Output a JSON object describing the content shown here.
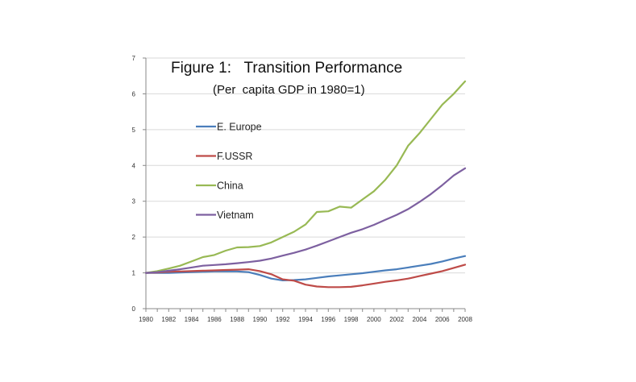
{
  "chart_data": {
    "type": "line",
    "title": "Figure 1:   Transition Performance",
    "subtitle": "(Per  capita GDP in 1980=1)",
    "xlabel": "",
    "ylabel": "",
    "xlim": [
      1980,
      2008
    ],
    "ylim": [
      0,
      7
    ],
    "y_ticks": [
      "0",
      "1",
      "2",
      "3",
      "4",
      "5",
      "6",
      "7"
    ],
    "x_ticks": [
      "1980",
      "1982",
      "1984",
      "1986",
      "1988",
      "1990",
      "1992",
      "1994",
      "1996",
      "1998",
      "2000",
      "2002",
      "2004",
      "2006",
      "2008"
    ],
    "grid": "horizontal",
    "legend_position": "upper-left",
    "x": [
      1980,
      1981,
      1982,
      1983,
      1984,
      1985,
      1986,
      1987,
      1988,
      1989,
      1990,
      1991,
      1992,
      1993,
      1994,
      1995,
      1996,
      1997,
      1998,
      1999,
      2000,
      2001,
      2002,
      2003,
      2004,
      2005,
      2006,
      2007,
      2008
    ],
    "series": [
      {
        "name": "E. Europe",
        "color": "#4a7ebb",
        "values": [
          1.0,
          1.0,
          1.0,
          1.01,
          1.02,
          1.03,
          1.04,
          1.04,
          1.04,
          1.02,
          0.94,
          0.84,
          0.79,
          0.8,
          0.82,
          0.86,
          0.9,
          0.93,
          0.96,
          0.99,
          1.03,
          1.07,
          1.1,
          1.15,
          1.2,
          1.25,
          1.32,
          1.4,
          1.47
        ]
      },
      {
        "name": "F.USSR",
        "color": "#be4b48",
        "values": [
          1.0,
          1.01,
          1.03,
          1.04,
          1.05,
          1.06,
          1.07,
          1.08,
          1.09,
          1.1,
          1.05,
          0.96,
          0.82,
          0.78,
          0.67,
          0.62,
          0.6,
          0.6,
          0.61,
          0.65,
          0.7,
          0.75,
          0.79,
          0.84,
          0.91,
          0.98,
          1.05,
          1.14,
          1.23
        ]
      },
      {
        "name": "China",
        "color": "#98b954",
        "values": [
          1.0,
          1.05,
          1.12,
          1.2,
          1.32,
          1.44,
          1.5,
          1.62,
          1.71,
          1.72,
          1.75,
          1.85,
          2.0,
          2.15,
          2.35,
          2.7,
          2.72,
          2.85,
          2.82,
          3.05,
          3.28,
          3.6,
          4.0,
          4.55,
          4.9,
          5.3,
          5.7,
          6.0,
          6.35
        ]
      },
      {
        "name": "Vietnam",
        "color": "#7d60a0",
        "values": [
          1.0,
          1.02,
          1.06,
          1.1,
          1.15,
          1.2,
          1.22,
          1.24,
          1.27,
          1.3,
          1.34,
          1.4,
          1.48,
          1.56,
          1.65,
          1.76,
          1.88,
          2.0,
          2.12,
          2.22,
          2.34,
          2.48,
          2.62,
          2.78,
          2.98,
          3.2,
          3.45,
          3.72,
          3.92
        ]
      }
    ]
  }
}
